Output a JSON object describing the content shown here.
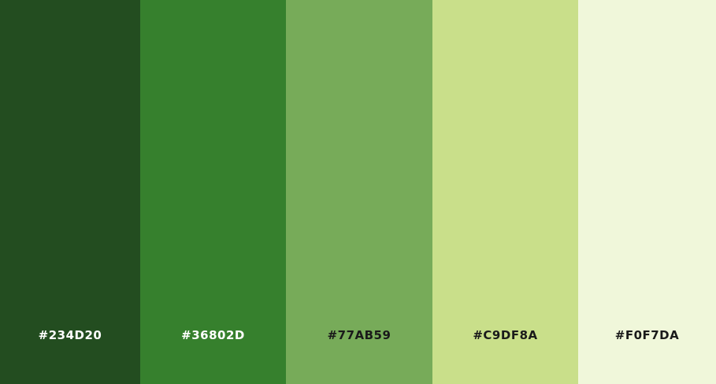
{
  "palette": {
    "swatches": [
      {
        "hex": "#234D20",
        "color": "#234D20",
        "label_color": "#FFFFFF"
      },
      {
        "hex": "#36802D",
        "color": "#36802D",
        "label_color": "#FFFFFF"
      },
      {
        "hex": "#77AB59",
        "color": "#77AB59",
        "label_color": "#1A1A1A"
      },
      {
        "hex": "#C9DF8A",
        "color": "#C9DF8A",
        "label_color": "#1A1A1A"
      },
      {
        "hex": "#F0F7DA",
        "color": "#F0F7DA",
        "label_color": "#1A1A1A"
      }
    ]
  }
}
